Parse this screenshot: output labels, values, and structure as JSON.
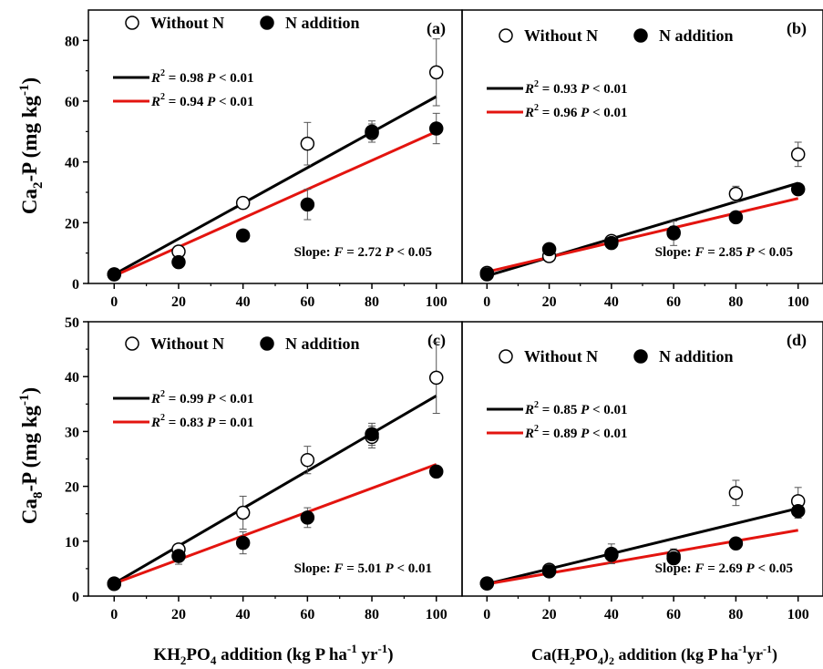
{
  "figure": {
    "ylabel_top": {
      "base": "Ca",
      "sub": "2",
      "rest": "-P (mg kg",
      "sup": "-1",
      "end": ")"
    },
    "ylabel_bottom": {
      "base": "Ca",
      "sub": "8",
      "rest": "-P (mg kg",
      "sup": "-1",
      "end": ")"
    },
    "xlabel_left": {
      "p1": "KH",
      "s1": "2",
      "p2": "PO",
      "s2": "4",
      "p3": " addition (kg P ha",
      "u1": "-1",
      "p4": " yr",
      "u2": "-1",
      "p5": ")"
    },
    "xlabel_right": {
      "p1": "Ca(H",
      "s1": "2",
      "p2": "PO",
      "s2": "4",
      "p3": ")",
      "s3": "2",
      "p4": " addition (kg P ha",
      "u1": "-1",
      "p5": "yr",
      "u2": "-1",
      "p6": ")"
    }
  },
  "legend": {
    "without_n": "Without N",
    "n_addition": "N addition"
  },
  "colors": {
    "without_n_line": "#000000",
    "n_addition_line": "#e3140f"
  },
  "chart_data": [
    {
      "type": "scatter",
      "panel": "a",
      "panel_label": "(a)",
      "xticks": [
        "0",
        "20",
        "40",
        "60",
        "80",
        "100"
      ],
      "yticks": [
        "0",
        "20",
        "40",
        "60",
        "80"
      ],
      "xlim": [
        -8,
        108
      ],
      "ylim": [
        0,
        90
      ],
      "x": [
        0,
        20,
        40,
        60,
        80,
        100
      ],
      "series": [
        {
          "legend_key": "without_n",
          "marker": "open-circle",
          "values": [
            3,
            10.5,
            26.5,
            46,
            49.5,
            69.5
          ],
          "errors": [
            0.5,
            1.5,
            1,
            7,
            3,
            11
          ],
          "fit": [
            3.0,
            61.5
          ],
          "stat_r2": "0.98",
          "stat_p": "< 0.01"
        },
        {
          "legend_key": "n_addition",
          "marker": "filled-circle",
          "values": [
            3,
            7,
            15.8,
            26,
            50,
            51
          ],
          "errors": [
            0.5,
            0.8,
            0.8,
            5,
            3.5,
            5
          ],
          "fit": [
            2.5,
            50.0
          ],
          "stat_r2": "0.94",
          "stat_p": "< 0.01"
        }
      ],
      "slope_text": {
        "label": "Slope: ",
        "f": "F",
        "rest": " = 2.72 ",
        "p": "P",
        "tail": " < 0.05"
      }
    },
    {
      "type": "scatter",
      "panel": "b",
      "panel_label": "(b)",
      "xticks": [
        "0",
        "20",
        "40",
        "60",
        "80",
        "100"
      ],
      "yticks": [],
      "xlim": [
        -8,
        108
      ],
      "ylim": [
        0,
        90
      ],
      "x": [
        0,
        20,
        40,
        60,
        80,
        100
      ],
      "series": [
        {
          "legend_key": "without_n",
          "marker": "open-circle",
          "values": [
            3.5,
            9,
            14,
            16.5,
            29.5,
            42.5
          ],
          "errors": [
            0.5,
            1,
            1,
            4,
            2.5,
            4
          ],
          "fit": [
            2.5,
            33.0
          ],
          "stat_r2": "0.93",
          "stat_p": "< 0.01"
        },
        {
          "legend_key": "n_addition",
          "marker": "filled-circle",
          "values": [
            3,
            11.3,
            13.3,
            16.8,
            21.8,
            31
          ],
          "errors": [
            0.5,
            1,
            1,
            2,
            1.5,
            1.5
          ],
          "fit": [
            3.8,
            28.0
          ],
          "stat_r2": "0.96",
          "stat_p": "< 0.01"
        }
      ],
      "slope_text": {
        "label": "Slope: ",
        "f": "F",
        "rest": " = 2.85 ",
        "p": "P",
        "tail": " < 0.05"
      }
    },
    {
      "type": "scatter",
      "panel": "c",
      "panel_label": "(c)",
      "xticks": [
        "0",
        "20",
        "40",
        "60",
        "80",
        "100"
      ],
      "yticks": [
        "0",
        "10",
        "20",
        "30",
        "40",
        "50"
      ],
      "xlim": [
        -8,
        108
      ],
      "ylim": [
        0,
        50
      ],
      "x": [
        0,
        20,
        40,
        60,
        80,
        100
      ],
      "series": [
        {
          "legend_key": "without_n",
          "marker": "open-circle",
          "values": [
            2.3,
            8.5,
            15.2,
            24.8,
            29,
            39.8
          ],
          "errors": [
            0.3,
            1,
            3,
            2.5,
            2,
            6.5
          ],
          "fit": [
            2.3,
            36.5
          ],
          "stat_r2": "0.99",
          "stat_p": "< 0.01"
        },
        {
          "legend_key": "n_addition",
          "marker": "filled-circle",
          "values": [
            2.2,
            7.3,
            9.7,
            14.3,
            29.5,
            22.7
          ],
          "errors": [
            0.3,
            1.5,
            2,
            1.8,
            2,
            1
          ],
          "fit": [
            2.3,
            24.0
          ],
          "stat_r2": "0.83",
          "stat_p": "= 0.01"
        }
      ],
      "slope_text": {
        "label": "Slope: ",
        "f": "F",
        "rest": " = 5.01 ",
        "p": "P",
        "tail": " < 0.01"
      }
    },
    {
      "type": "scatter",
      "panel": "d",
      "panel_label": "(d)",
      "xticks": [
        "0",
        "20",
        "40",
        "60",
        "80",
        "100"
      ],
      "yticks": [],
      "xlim": [
        -8,
        108
      ],
      "ylim": [
        0,
        50
      ],
      "x": [
        0,
        20,
        40,
        60,
        80,
        100
      ],
      "series": [
        {
          "legend_key": "without_n",
          "marker": "open-circle",
          "values": [
            2.3,
            4.8,
            7.7,
            7.3,
            18.8,
            17.3
          ],
          "errors": [
            0.3,
            0.5,
            1.8,
            1.3,
            2.3,
            2.5
          ],
          "fit": [
            2.2,
            16.0
          ],
          "stat_r2": "0.85",
          "stat_p": "< 0.01"
        },
        {
          "legend_key": "n_addition",
          "marker": "filled-circle",
          "values": [
            2.3,
            4.5,
            7.5,
            6.9,
            9.6,
            15.5
          ],
          "errors": [
            0.3,
            0.4,
            1,
            1,
            0.5,
            1.3
          ],
          "fit": [
            2.2,
            12.0
          ],
          "stat_r2": "0.89",
          "stat_p": "< 0.01"
        }
      ],
      "slope_text": {
        "label": "Slope: ",
        "f": "F",
        "rest": " = 2.69 ",
        "p": "P",
        "tail": " < 0.05"
      }
    }
  ]
}
